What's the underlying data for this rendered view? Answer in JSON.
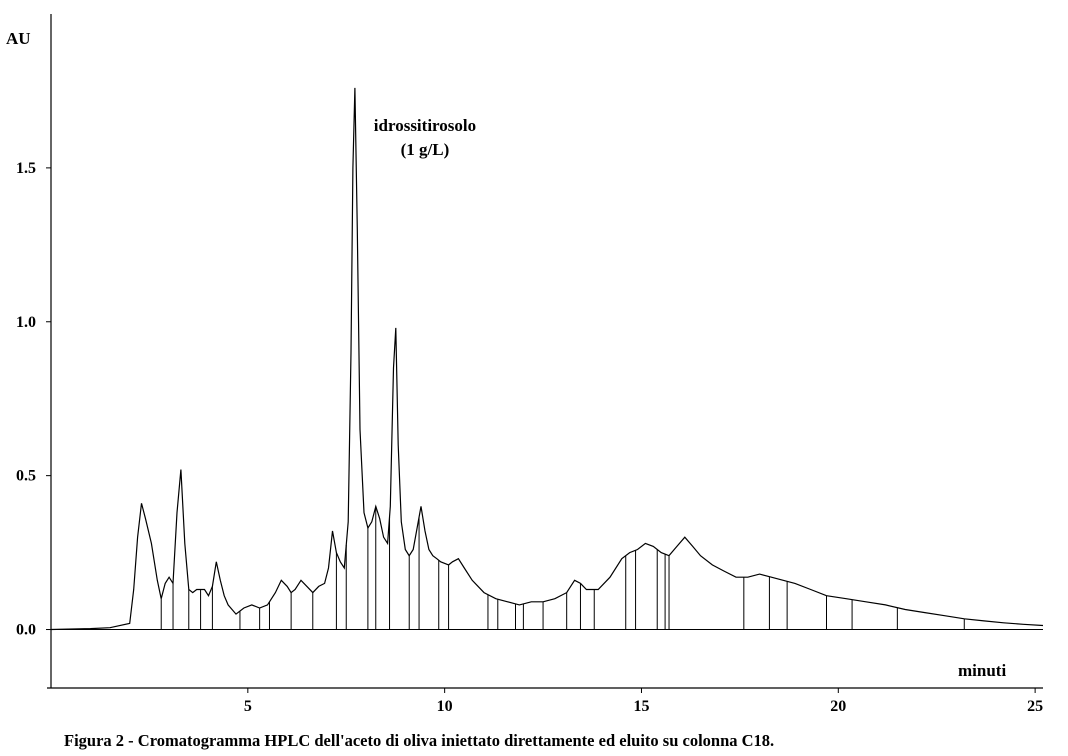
{
  "caption": "Figura 2 - Cromatogramma HPLC dell'aceto di oliva iniettato direttamente ed eluito su colonna C18.",
  "chart_data": {
    "type": "line",
    "ylabel": "AU",
    "xlabel": "minuti",
    "xlim": [
      0,
      25.2
    ],
    "ylim": [
      -0.19,
      2.0
    ],
    "x_ticks": [
      5,
      10,
      15,
      20,
      25
    ],
    "y_ticks": [
      0.0,
      0.5,
      1.0,
      1.5
    ],
    "y_tick_labels": [
      "0.0",
      "0.5",
      "1.0",
      "1.5"
    ],
    "grid": false,
    "legend": "none",
    "annotation": {
      "lines": [
        "idrossitirosolo",
        "(1 g/L)"
      ],
      "x": 9.5,
      "y": 1.62
    },
    "series": [
      {
        "x": [
          0,
          1.0,
          1.5,
          2.0,
          2.1,
          2.2,
          2.3,
          2.4,
          2.55,
          2.7,
          2.8,
          2.9,
          3.0,
          3.1,
          3.2,
          3.3,
          3.4,
          3.5,
          3.6,
          3.7,
          3.8,
          3.9,
          4.0,
          4.1,
          4.2,
          4.3,
          4.4,
          4.5,
          4.7,
          4.9,
          5.1,
          5.3,
          5.5,
          5.7,
          5.85,
          6.0,
          6.1,
          6.2,
          6.35,
          6.5,
          6.65,
          6.8,
          6.95,
          7.05,
          7.15,
          7.25,
          7.35,
          7.45,
          7.55,
          7.62,
          7.67,
          7.72,
          7.78,
          7.85,
          7.95,
          8.05,
          8.15,
          8.25,
          8.35,
          8.45,
          8.55,
          8.62,
          8.7,
          8.76,
          8.82,
          8.9,
          9.0,
          9.1,
          9.2,
          9.3,
          9.4,
          9.5,
          9.6,
          9.7,
          9.8,
          9.9,
          10.1,
          10.2,
          10.35,
          10.5,
          10.7,
          11.0,
          11.3,
          11.6,
          11.9,
          12.2,
          12.5,
          12.8,
          13.1,
          13.3,
          13.45,
          13.6,
          13.9,
          14.2,
          14.5,
          14.7,
          14.9,
          15.1,
          15.3,
          15.5,
          15.7,
          15.9,
          16.1,
          16.3,
          16.5,
          16.8,
          17.1,
          17.4,
          17.7,
          18.0,
          18.3,
          18.6,
          18.9,
          19.3,
          19.7,
          20.2,
          20.7,
          21.2,
          21.7,
          22.2,
          22.7,
          23.2,
          23.7,
          24.2,
          24.7,
          25.2
        ],
        "y": [
          0.0,
          0.003,
          0.006,
          0.02,
          0.13,
          0.3,
          0.41,
          0.36,
          0.28,
          0.16,
          0.1,
          0.15,
          0.17,
          0.15,
          0.38,
          0.52,
          0.28,
          0.13,
          0.12,
          0.13,
          0.13,
          0.13,
          0.11,
          0.14,
          0.22,
          0.16,
          0.11,
          0.08,
          0.05,
          0.07,
          0.08,
          0.07,
          0.08,
          0.12,
          0.16,
          0.14,
          0.12,
          0.13,
          0.16,
          0.14,
          0.12,
          0.14,
          0.15,
          0.2,
          0.32,
          0.25,
          0.22,
          0.2,
          0.35,
          0.9,
          1.5,
          1.76,
          1.3,
          0.65,
          0.38,
          0.33,
          0.35,
          0.4,
          0.36,
          0.3,
          0.28,
          0.4,
          0.85,
          0.98,
          0.6,
          0.35,
          0.26,
          0.24,
          0.26,
          0.33,
          0.4,
          0.32,
          0.26,
          0.24,
          0.23,
          0.22,
          0.21,
          0.22,
          0.23,
          0.2,
          0.16,
          0.12,
          0.1,
          0.09,
          0.08,
          0.09,
          0.09,
          0.1,
          0.12,
          0.16,
          0.15,
          0.13,
          0.13,
          0.17,
          0.23,
          0.25,
          0.26,
          0.28,
          0.27,
          0.25,
          0.24,
          0.27,
          0.3,
          0.27,
          0.24,
          0.21,
          0.19,
          0.17,
          0.17,
          0.18,
          0.17,
          0.16,
          0.15,
          0.13,
          0.11,
          0.1,
          0.09,
          0.08,
          0.065,
          0.055,
          0.045,
          0.035,
          0.028,
          0.022,
          0.017,
          0.013
        ]
      }
    ],
    "drop_lines_x": [
      2.8,
      3.1,
      3.5,
      3.8,
      4.1,
      4.8,
      5.3,
      5.55,
      6.1,
      6.65,
      7.25,
      7.5,
      8.05,
      8.25,
      8.6,
      9.1,
      9.35,
      9.85,
      10.1,
      11.1,
      11.35,
      11.8,
      12.0,
      12.5,
      13.1,
      13.45,
      13.8,
      14.6,
      14.85,
      15.4,
      15.6,
      15.7,
      17.6,
      18.25,
      18.7,
      19.7,
      20.35,
      21.5,
      23.2
    ]
  }
}
